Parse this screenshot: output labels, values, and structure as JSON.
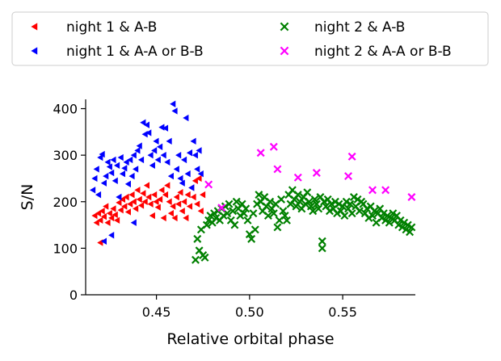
{
  "chart_data": {
    "type": "scatter",
    "xlabel": "Relative orbital phase",
    "ylabel": "S/N",
    "xlim": [
      0.412,
      0.589
    ],
    "ylim": [
      0,
      420
    ],
    "xticks": [
      0.45,
      0.5,
      0.55
    ],
    "xtick_labels": [
      "0.45",
      "0.50",
      "0.55"
    ],
    "yticks": [
      0,
      100,
      200,
      300,
      400
    ],
    "ytick_labels": [
      "0",
      "100",
      "200",
      "300",
      "400"
    ],
    "grid": false,
    "legend": {
      "placement": "top, outside plot",
      "columns": 2
    },
    "series": [
      {
        "name": "night 1 & A-B",
        "color": "#ff0000",
        "marker": "triangle-left",
        "points": [
          [
            0.417,
            170
          ],
          [
            0.418,
            155
          ],
          [
            0.419,
            175
          ],
          [
            0.42,
            112
          ],
          [
            0.42,
            160
          ],
          [
            0.421,
            180
          ],
          [
            0.422,
            168
          ],
          [
            0.423,
            190
          ],
          [
            0.424,
            155
          ],
          [
            0.425,
            175
          ],
          [
            0.426,
            165
          ],
          [
            0.427,
            185
          ],
          [
            0.428,
            172
          ],
          [
            0.429,
            160
          ],
          [
            0.43,
            198
          ],
          [
            0.431,
            182
          ],
          [
            0.432,
            205
          ],
          [
            0.433,
            190
          ],
          [
            0.434,
            210
          ],
          [
            0.435,
            178
          ],
          [
            0.436,
            195
          ],
          [
            0.437,
            215
          ],
          [
            0.438,
            200
          ],
          [
            0.439,
            185
          ],
          [
            0.44,
            225
          ],
          [
            0.441,
            205
          ],
          [
            0.442,
            192
          ],
          [
            0.443,
            218
          ],
          [
            0.444,
            200
          ],
          [
            0.445,
            235
          ],
          [
            0.446,
            210
          ],
          [
            0.447,
            195
          ],
          [
            0.448,
            170
          ],
          [
            0.449,
            215
          ],
          [
            0.45,
            200
          ],
          [
            0.451,
            188
          ],
          [
            0.452,
            205
          ],
          [
            0.453,
            225
          ],
          [
            0.454,
            165
          ],
          [
            0.455,
            215
          ],
          [
            0.456,
            235
          ],
          [
            0.457,
            200
          ],
          [
            0.458,
            175
          ],
          [
            0.459,
            190
          ],
          [
            0.46,
            165
          ],
          [
            0.461,
            210
          ],
          [
            0.462,
            195
          ],
          [
            0.463,
            220
          ],
          [
            0.464,
            180
          ],
          [
            0.465,
            200
          ],
          [
            0.466,
            165
          ],
          [
            0.467,
            215
          ],
          [
            0.468,
            190
          ],
          [
            0.469,
            230
          ],
          [
            0.47,
            210
          ],
          [
            0.471,
            245
          ],
          [
            0.472,
            195
          ],
          [
            0.473,
            250
          ],
          [
            0.474,
            180
          ],
          [
            0.475,
            215
          ]
        ]
      },
      {
        "name": "night 1 & A-A or B-B",
        "color": "#0000ff",
        "marker": "triangle-left",
        "points": [
          [
            0.416,
            225
          ],
          [
            0.417,
            250
          ],
          [
            0.418,
            270
          ],
          [
            0.419,
            215
          ],
          [
            0.42,
            295
          ],
          [
            0.421,
            302
          ],
          [
            0.422,
            115
          ],
          [
            0.422,
            240
          ],
          [
            0.423,
            255
          ],
          [
            0.424,
            285
          ],
          [
            0.425,
            275
          ],
          [
            0.426,
            128
          ],
          [
            0.426,
            262
          ],
          [
            0.427,
            290
          ],
          [
            0.428,
            245
          ],
          [
            0.429,
            278
          ],
          [
            0.43,
            210
          ],
          [
            0.431,
            295
          ],
          [
            0.432,
            260
          ],
          [
            0.433,
            272
          ],
          [
            0.434,
            285
          ],
          [
            0.435,
            238
          ],
          [
            0.436,
            290
          ],
          [
            0.437,
            255
          ],
          [
            0.438,
            155
          ],
          [
            0.438,
            300
          ],
          [
            0.439,
            270
          ],
          [
            0.44,
            310
          ],
          [
            0.441,
            320
          ],
          [
            0.442,
            290
          ],
          [
            0.443,
            370
          ],
          [
            0.444,
            345
          ],
          [
            0.445,
            365
          ],
          [
            0.446,
            348
          ],
          [
            0.447,
            300
          ],
          [
            0.448,
            278
          ],
          [
            0.449,
            310
          ],
          [
            0.45,
            330
          ],
          [
            0.451,
            290
          ],
          [
            0.452,
            318
          ],
          [
            0.453,
            360
          ],
          [
            0.454,
            300
          ],
          [
            0.455,
            358
          ],
          [
            0.456,
            285
          ],
          [
            0.457,
            330
          ],
          [
            0.458,
            255
          ],
          [
            0.459,
            410
          ],
          [
            0.46,
            395
          ],
          [
            0.461,
            270
          ],
          [
            0.462,
            300
          ],
          [
            0.463,
            250
          ],
          [
            0.464,
            240
          ],
          [
            0.465,
            290
          ],
          [
            0.466,
            380
          ],
          [
            0.467,
            260
          ],
          [
            0.468,
            305
          ],
          [
            0.469,
            230
          ],
          [
            0.47,
            330
          ],
          [
            0.471,
            300
          ],
          [
            0.472,
            270
          ],
          [
            0.473,
            310
          ],
          [
            0.474,
            260
          ]
        ]
      },
      {
        "name": "night 2 & A-B",
        "color": "#008000",
        "marker": "x",
        "points": [
          [
            0.471,
            75
          ],
          [
            0.472,
            120
          ],
          [
            0.473,
            95
          ],
          [
            0.474,
            140
          ],
          [
            0.475,
            85
          ],
          [
            0.476,
            80
          ],
          [
            0.477,
            150
          ],
          [
            0.478,
            160
          ],
          [
            0.479,
            170
          ],
          [
            0.48,
            155
          ],
          [
            0.481,
            175
          ],
          [
            0.482,
            165
          ],
          [
            0.483,
            180
          ],
          [
            0.484,
            160
          ],
          [
            0.485,
            185
          ],
          [
            0.486,
            170
          ],
          [
            0.487,
            190
          ],
          [
            0.488,
            175
          ],
          [
            0.489,
            195
          ],
          [
            0.49,
            160
          ],
          [
            0.491,
            180
          ],
          [
            0.492,
            150
          ],
          [
            0.493,
            200
          ],
          [
            0.494,
            185
          ],
          [
            0.495,
            170
          ],
          [
            0.496,
            195
          ],
          [
            0.497,
            175
          ],
          [
            0.498,
            185
          ],
          [
            0.499,
            160
          ],
          [
            0.5,
            130
          ],
          [
            0.501,
            120
          ],
          [
            0.502,
            175
          ],
          [
            0.503,
            140
          ],
          [
            0.504,
            195
          ],
          [
            0.505,
            215
          ],
          [
            0.506,
            200
          ],
          [
            0.507,
            180
          ],
          [
            0.508,
            210
          ],
          [
            0.509,
            190
          ],
          [
            0.51,
            170
          ],
          [
            0.511,
            200
          ],
          [
            0.512,
            185
          ],
          [
            0.513,
            175
          ],
          [
            0.514,
            195
          ],
          [
            0.515,
            145
          ],
          [
            0.516,
            160
          ],
          [
            0.517,
            205
          ],
          [
            0.518,
            180
          ],
          [
            0.519,
            170
          ],
          [
            0.52,
            160
          ],
          [
            0.521,
            215
          ],
          [
            0.522,
            195
          ],
          [
            0.523,
            225
          ],
          [
            0.524,
            205
          ],
          [
            0.525,
            190
          ],
          [
            0.526,
            215
          ],
          [
            0.527,
            200
          ],
          [
            0.528,
            185
          ],
          [
            0.529,
            210
          ],
          [
            0.53,
            195
          ],
          [
            0.531,
            220
          ],
          [
            0.532,
            200
          ],
          [
            0.533,
            190
          ],
          [
            0.534,
            180
          ],
          [
            0.535,
            205
          ],
          [
            0.536,
            195
          ],
          [
            0.537,
            185
          ],
          [
            0.538,
            210
          ],
          [
            0.539,
            115
          ],
          [
            0.539,
            100
          ],
          [
            0.54,
            200
          ],
          [
            0.541,
            190
          ],
          [
            0.542,
            205
          ],
          [
            0.543,
            180
          ],
          [
            0.544,
            195
          ],
          [
            0.545,
            185
          ],
          [
            0.546,
            200
          ],
          [
            0.547,
            175
          ],
          [
            0.548,
            195
          ],
          [
            0.549,
            180
          ],
          [
            0.55,
            190
          ],
          [
            0.551,
            170
          ],
          [
            0.552,
            200
          ],
          [
            0.553,
            185
          ],
          [
            0.554,
            195
          ],
          [
            0.555,
            175
          ],
          [
            0.556,
            210
          ],
          [
            0.557,
            190
          ],
          [
            0.558,
            205
          ],
          [
            0.559,
            180
          ],
          [
            0.56,
            200
          ],
          [
            0.561,
            195
          ],
          [
            0.562,
            175
          ],
          [
            0.563,
            185
          ],
          [
            0.564,
            165
          ],
          [
            0.565,
            190
          ],
          [
            0.566,
            170
          ],
          [
            0.567,
            180
          ],
          [
            0.568,
            155
          ],
          [
            0.569,
            175
          ],
          [
            0.57,
            185
          ],
          [
            0.571,
            165
          ],
          [
            0.572,
            175
          ],
          [
            0.573,
            160
          ],
          [
            0.574,
            170
          ],
          [
            0.575,
            155
          ],
          [
            0.576,
            165
          ],
          [
            0.577,
            175
          ],
          [
            0.578,
            160
          ],
          [
            0.579,
            170
          ],
          [
            0.58,
            150
          ],
          [
            0.581,
            160
          ],
          [
            0.582,
            145
          ],
          [
            0.583,
            155
          ],
          [
            0.584,
            140
          ],
          [
            0.585,
            150
          ],
          [
            0.586,
            135
          ],
          [
            0.587,
            145
          ]
        ]
      },
      {
        "name": "night 2 & A-A or B-B",
        "color": "#ff00ff",
        "marker": "x",
        "points": [
          [
            0.478,
            237
          ],
          [
            0.485,
            187
          ],
          [
            0.506,
            305
          ],
          [
            0.513,
            318
          ],
          [
            0.515,
            270
          ],
          [
            0.526,
            252
          ],
          [
            0.536,
            262
          ],
          [
            0.553,
            255
          ],
          [
            0.555,
            297
          ],
          [
            0.566,
            225
          ],
          [
            0.573,
            225
          ],
          [
            0.587,
            210
          ]
        ]
      }
    ]
  }
}
